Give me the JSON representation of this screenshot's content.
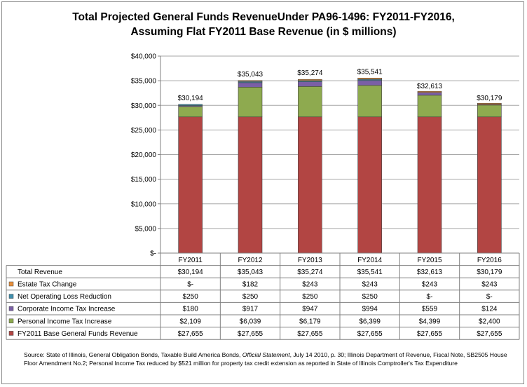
{
  "chart_data": {
    "type": "bar",
    "stacked": true,
    "title_line1": "Total Projected General Funds RevenueUnder PA96-1496: FY2011-FY2016,",
    "title_line2": "Assuming Flat FY2011 Base Revenue (in $ millions)",
    "categories": [
      "FY2011",
      "FY2012",
      "FY2013",
      "FY2014",
      "FY2015",
      "FY2016"
    ],
    "ylim": [
      0,
      40000
    ],
    "ytick_values": [
      0,
      5000,
      10000,
      15000,
      20000,
      25000,
      30000,
      35000,
      40000
    ],
    "ytick_labels": [
      "$-",
      "$5,000",
      "$10,000",
      "$15,000",
      "$20,000",
      "$25,000",
      "$30,000",
      "$35,000",
      "$40,000"
    ],
    "totals": [
      30194,
      35043,
      35274,
      35541,
      32613,
      30179
    ],
    "total_labels": [
      "$30,194",
      "$35,043",
      "$35,274",
      "$35,541",
      "$32,613",
      "$30,179"
    ],
    "series": [
      {
        "name": "FY2011 Base General Funds Revenue",
        "color": "#b24543",
        "values": [
          27655,
          27655,
          27655,
          27655,
          27655,
          27655
        ],
        "labels": [
          "$27,655",
          "$27,655",
          "$27,655",
          "$27,655",
          "$27,655",
          "$27,655"
        ]
      },
      {
        "name": "Personal Income Tax Increase",
        "color": "#8eaa4f",
        "values": [
          2109,
          6039,
          6179,
          6399,
          4399,
          2400
        ],
        "labels": [
          "$2,109",
          "$6,039",
          "$6,179",
          "$6,399",
          "$4,399",
          "$2,400"
        ]
      },
      {
        "name": "Corporate Income Tax Increase",
        "color": "#7a5fa6",
        "values": [
          180,
          917,
          947,
          994,
          559,
          124
        ],
        "labels": [
          "$180",
          "$917",
          "$947",
          "$994",
          "$559",
          "$124"
        ]
      },
      {
        "name": "Net Operating Loss Reduction",
        "color": "#3f8fad",
        "values": [
          250,
          250,
          250,
          250,
          0,
          0
        ],
        "labels": [
          "$250",
          "$250",
          "$250",
          "$250",
          "$-",
          "$-"
        ]
      },
      {
        "name": "Estate Tax Change",
        "color": "#e8903c",
        "values": [
          0,
          182,
          243,
          243,
          243,
          243
        ],
        "labels": [
          "$-",
          "$182",
          "$243",
          "$243",
          "$243",
          "$243"
        ]
      }
    ],
    "total_row_label": "Total Revenue",
    "grid": true
  },
  "source": {
    "prefix": "Source: State of Illinois, General Obligation Bonds, Taxable Build America Bonds, ",
    "italic": "Official Statement",
    "rest": ", July 14 2010, p. 30; Illinois Department of Revenue, Fiscal Note, SB2505 House Floor Amendment No.2; Personal Income Tax reduced by $521 million for property tax credit extension as reported in State of Illinois Comptroller's Tax Expenditure"
  }
}
